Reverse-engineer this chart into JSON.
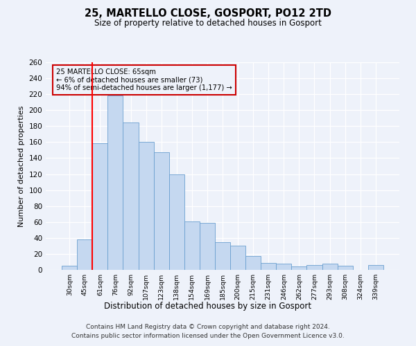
{
  "title": "25, MARTELLO CLOSE, GOSPORT, PO12 2TD",
  "subtitle": "Size of property relative to detached houses in Gosport",
  "xlabel": "Distribution of detached houses by size in Gosport",
  "ylabel": "Number of detached properties",
  "categories": [
    "30sqm",
    "45sqm",
    "61sqm",
    "76sqm",
    "92sqm",
    "107sqm",
    "123sqm",
    "138sqm",
    "154sqm",
    "169sqm",
    "185sqm",
    "200sqm",
    "215sqm",
    "231sqm",
    "246sqm",
    "262sqm",
    "277sqm",
    "293sqm",
    "308sqm",
    "324sqm",
    "339sqm"
  ],
  "values": [
    5,
    38,
    159,
    218,
    185,
    160,
    147,
    120,
    61,
    59,
    35,
    30,
    17,
    9,
    8,
    4,
    6,
    8,
    5,
    0,
    6
  ],
  "bar_color": "#c5d8f0",
  "bar_edge_color": "#6a9fd0",
  "property_line_label": "25 MARTELLO CLOSE: 65sqm",
  "annotation_line1": "← 6% of detached houses are smaller (73)",
  "annotation_line2": "94% of semi-detached houses are larger (1,177) →",
  "annotation_box_color": "#cc0000",
  "ylim": [
    0,
    260
  ],
  "yticks": [
    0,
    20,
    40,
    60,
    80,
    100,
    120,
    140,
    160,
    180,
    200,
    220,
    240,
    260
  ],
  "footer_line1": "Contains HM Land Registry data © Crown copyright and database right 2024.",
  "footer_line2": "Contains public sector information licensed under the Open Government Licence v3.0.",
  "bg_color": "#eef2fa"
}
